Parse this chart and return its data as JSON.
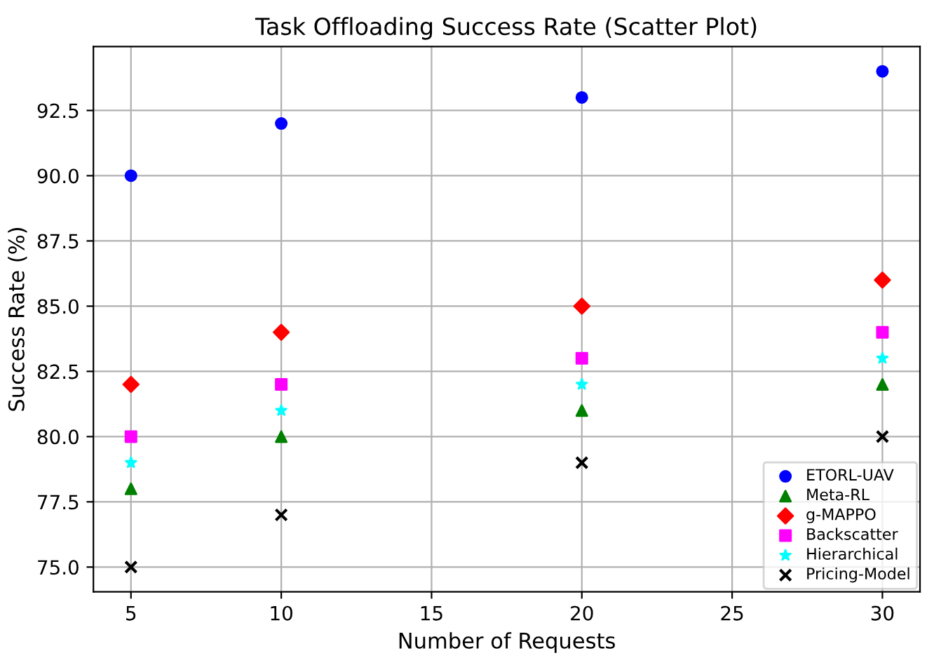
{
  "chart_data": {
    "type": "scatter",
    "title": "Task Offloading Success Rate (Scatter Plot)",
    "xlabel": "Number of Requests",
    "ylabel": "Success Rate (%)",
    "x": [
      5,
      10,
      20,
      30
    ],
    "series": [
      {
        "name": "ETORL-UAV",
        "color": "#0000ff",
        "marker": "circle",
        "values": [
          90,
          92,
          93,
          94
        ]
      },
      {
        "name": "Meta-RL",
        "color": "#008000",
        "marker": "triangle",
        "values": [
          78,
          80,
          81,
          82
        ]
      },
      {
        "name": "g-MAPPO",
        "color": "#ff0000",
        "marker": "diamond",
        "values": [
          82,
          84,
          85,
          86
        ]
      },
      {
        "name": "Backscatter",
        "color": "#ff00ff",
        "marker": "square",
        "values": [
          80,
          82,
          83,
          84
        ]
      },
      {
        "name": "Hierarchical",
        "color": "#00ffff",
        "marker": "star",
        "values": [
          79,
          81,
          82,
          83
        ]
      },
      {
        "name": "Pricing-Model",
        "color": "#000000",
        "marker": "cross",
        "values": [
          75,
          77,
          79,
          80
        ]
      }
    ],
    "xlim": [
      3.75,
      31.25
    ],
    "xticks": [
      5,
      10,
      15,
      20,
      25,
      30
    ],
    "ylim": [
      74.05,
      94.95
    ],
    "yticks": [
      {
        "value": 75,
        "label": "75.0"
      },
      77.5,
      {
        "value": 80,
        "label": "80.0"
      },
      82.5,
      {
        "value": 85,
        "label": "85.0"
      },
      87.5,
      {
        "value": 90,
        "label": "90.0"
      },
      92.5
    ],
    "grid": true,
    "legend": "bottom right"
  }
}
